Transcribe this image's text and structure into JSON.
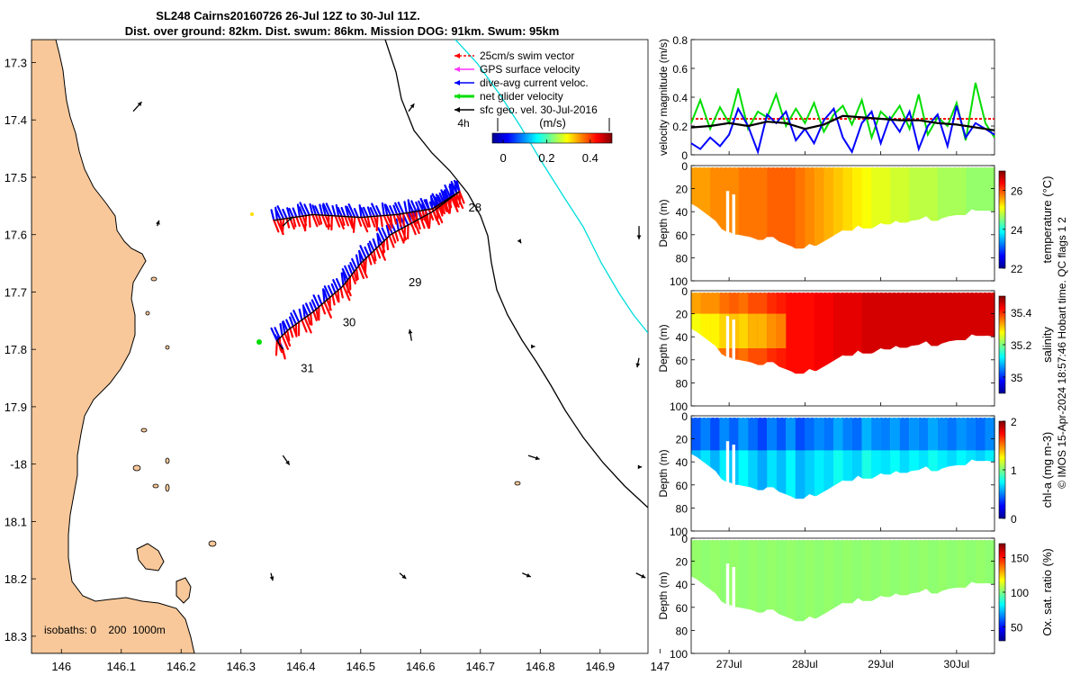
{
  "title": {
    "line1": "SL248 Cairns20160726 26-Jul 12Z to 30-Jul 11Z.",
    "line2": "Dist. over ground: 82km. Dist. swum: 86km. Mission DOG: 91km. Swum: 95km"
  },
  "footer": {
    "credit": "© IMOS 15-Apr-2024 18:57:46 Hobart time. QC flags 1  2"
  },
  "colors": {
    "land": "#f8c89a",
    "swim": "#ff0000",
    "gps": "#ff33ff",
    "dive_avg": "#0000ff",
    "net": "#00dd00",
    "track": "#000000",
    "sfc_geo": "#000000",
    "contour_shelf": "#000000",
    "contour_deep": "#00dddd"
  },
  "chart_data": [
    {
      "id": "map",
      "type": "map",
      "xlim": [
        145.95,
        146.98
      ],
      "ylim": [
        -18.33,
        -17.26
      ],
      "xticks": [
        146,
        146.1,
        146.2,
        146.3,
        146.4,
        146.5,
        146.6,
        146.7,
        146.8,
        146.9,
        147
      ],
      "xtick_labels": [
        "146",
        "146.1",
        "146.2",
        "146.3",
        "146.4",
        "146.5",
        "146.6",
        "146.7",
        "146.8",
        "146.9",
        "147"
      ],
      "yticks": [
        -17.3,
        -17.4,
        -17.5,
        -17.6,
        -17.7,
        -17.8,
        -17.9,
        -18,
        -18.1,
        -18.2,
        -18.3
      ],
      "ytick_labels": [
        "17.3",
        "17.4",
        "17.5",
        "17.6",
        "17.7",
        "17.8",
        "17.9",
        "-18",
        "18.1",
        "18.2",
        "18.3"
      ],
      "legend": [
        {
          "label": "25cm/s swim vector",
          "color_key": "swim"
        },
        {
          "label": "GPS surface velocity",
          "color_key": "gps"
        },
        {
          "label": "dive-avg current veloc.",
          "color_key": "dive_avg"
        },
        {
          "label": "net glider velocity",
          "color_key": "net"
        },
        {
          "label": "sfc geo. vel. 30-Jul-2016",
          "color_key": "sfc_geo"
        }
      ],
      "legend_placement": "top-right",
      "colorbar": {
        "label": "(m/s)",
        "ref_label": "4h",
        "ticks": [
          0,
          0.2,
          0.4
        ],
        "tick_labels": [
          "0",
          "0.2",
          "0.4"
        ],
        "range": [
          -0.05,
          0.5
        ],
        "colormap": "jet"
      },
      "isobaths_label": "isobaths: 0    200  1000m",
      "day_labels": [
        {
          "label": "28",
          "lon": 146.68,
          "lat": -17.56
        },
        {
          "label": "29",
          "lon": 146.58,
          "lat": -17.69
        },
        {
          "label": "30",
          "lon": 146.47,
          "lat": -17.76
        },
        {
          "label": "31",
          "lon": 146.4,
          "lat": -17.84
        }
      ],
      "track": [
        [
          146.665,
          -17.525
        ],
        [
          146.62,
          -17.56
        ],
        [
          146.55,
          -17.6
        ],
        [
          146.5,
          -17.65
        ],
        [
          146.47,
          -17.69
        ],
        [
          146.42,
          -17.735
        ],
        [
          146.38,
          -17.765
        ],
        [
          146.36,
          -17.785
        ],
        [
          146.37,
          -17.8
        ]
      ],
      "track_leg1": [
        [
          146.355,
          -17.575
        ],
        [
          146.42,
          -17.565
        ],
        [
          146.5,
          -17.57
        ],
        [
          146.56,
          -17.565
        ],
        [
          146.62,
          -17.555
        ],
        [
          146.665,
          -17.525
        ]
      ],
      "surface_vectors": [
        {
          "lon": 146.12,
          "lat": -17.385,
          "u": 0.09,
          "v": 0.1
        },
        {
          "lon": 146.58,
          "lat": -17.385,
          "u": 0.06,
          "v": 0.08
        },
        {
          "lon": 146.16,
          "lat": -17.585,
          "u": 0.02,
          "v": 0.06
        },
        {
          "lon": 146.37,
          "lat": -17.585,
          "u": 0.1,
          "v": 0.1
        },
        {
          "lon": 146.765,
          "lat": -17.61,
          "u": 0.02,
          "v": -0.03
        },
        {
          "lon": 146.965,
          "lat": -17.585,
          "u": 0.0,
          "v": -0.14
        },
        {
          "lon": 146.585,
          "lat": -17.785,
          "u": -0.02,
          "v": 0.12
        },
        {
          "lon": 146.785,
          "lat": -17.795,
          "u": 0.04,
          "v": 0.0
        },
        {
          "lon": 146.965,
          "lat": -17.815,
          "u": -0.02,
          "v": -0.1
        },
        {
          "lon": 146.37,
          "lat": -17.985,
          "u": 0.07,
          "v": -0.1
        },
        {
          "lon": 146.78,
          "lat": -17.985,
          "u": 0.12,
          "v": -0.04
        },
        {
          "lon": 146.965,
          "lat": -18.005,
          "u": 0.03,
          "v": 0.0
        },
        {
          "lon": 146.35,
          "lat": -18.19,
          "u": 0.02,
          "v": -0.08
        },
        {
          "lon": 146.565,
          "lat": -18.19,
          "u": 0.07,
          "v": -0.06
        },
        {
          "lon": 146.77,
          "lat": -18.19,
          "u": 0.09,
          "v": -0.04
        },
        {
          "lon": 146.96,
          "lat": -18.19,
          "u": 0.1,
          "v": -0.05
        }
      ]
    },
    {
      "id": "velocity",
      "type": "line",
      "ylabel": "velocity magnitude (m/s)",
      "xlim": [
        26.5,
        30.5
      ],
      "ylim": [
        0,
        0.8
      ],
      "yticks": [
        0,
        0.2,
        0.4,
        0.6,
        0.8
      ],
      "ytick_labels": [
        "0",
        "0.2",
        "0.4",
        "0.6",
        "0.8"
      ],
      "series": [
        {
          "name": "swim (25cm/s)",
          "color_key": "swim",
          "style": "dashed",
          "x": [
            26.5,
            30.5
          ],
          "y": [
            0.25,
            0.25
          ]
        },
        {
          "name": "net glider velocity",
          "color_key": "net",
          "x": [
            26.5,
            26.62,
            26.75,
            26.88,
            27.0,
            27.12,
            27.25,
            27.38,
            27.5,
            27.62,
            27.75,
            27.88,
            28.0,
            28.12,
            28.25,
            28.38,
            28.5,
            28.62,
            28.75,
            28.88,
            29.0,
            29.12,
            29.25,
            29.38,
            29.5,
            29.62,
            29.75,
            29.88,
            30.0,
            30.12,
            30.25,
            30.38,
            30.5
          ],
          "y": [
            0.22,
            0.38,
            0.18,
            0.33,
            0.22,
            0.46,
            0.18,
            0.3,
            0.26,
            0.42,
            0.2,
            0.32,
            0.22,
            0.36,
            0.16,
            0.28,
            0.34,
            0.21,
            0.38,
            0.12,
            0.3,
            0.24,
            0.34,
            0.18,
            0.42,
            0.14,
            0.26,
            0.2,
            0.36,
            0.1,
            0.5,
            0.22,
            0.12
          ]
        },
        {
          "name": "dive-avg current veloc.",
          "color_key": "dive_avg",
          "x": [
            26.5,
            26.62,
            26.75,
            26.88,
            27.0,
            27.12,
            27.25,
            27.38,
            27.5,
            27.62,
            27.75,
            27.88,
            28.0,
            28.12,
            28.25,
            28.38,
            28.5,
            28.62,
            28.75,
            28.88,
            29.0,
            29.12,
            29.25,
            29.38,
            29.5,
            29.62,
            29.75,
            29.88,
            30.0,
            30.12,
            30.25,
            30.38,
            30.5
          ],
          "y": [
            0.08,
            0.04,
            0.12,
            0.06,
            0.14,
            0.32,
            0.2,
            0.02,
            0.28,
            0.22,
            0.3,
            0.1,
            0.18,
            0.08,
            0.24,
            0.32,
            0.12,
            0.02,
            0.22,
            0.3,
            0.08,
            0.26,
            0.16,
            0.3,
            0.04,
            0.2,
            0.28,
            0.06,
            0.34,
            0.12,
            0.22,
            0.18,
            0.14
          ]
        },
        {
          "name": "dist. over ground",
          "color_key": "track",
          "x": [
            26.5,
            26.75,
            27.0,
            27.25,
            27.5,
            27.75,
            28.0,
            28.25,
            28.5,
            28.75,
            29.0,
            29.25,
            29.5,
            29.75,
            30.0,
            30.25,
            30.5
          ],
          "y": [
            0.19,
            0.2,
            0.22,
            0.2,
            0.23,
            0.22,
            0.18,
            0.21,
            0.27,
            0.26,
            0.25,
            0.24,
            0.24,
            0.22,
            0.21,
            0.19,
            0.17
          ]
        }
      ]
    },
    {
      "id": "temperature",
      "type": "heatmap",
      "ylabel": "Depth (m)",
      "colorbar_label": "temperature (°C)",
      "yticks": [
        0,
        20,
        40,
        60,
        80,
        100
      ],
      "ytick_labels": [
        "0",
        "20",
        "40",
        "60",
        "80",
        "100"
      ],
      "clim": [
        22,
        27
      ],
      "cticks": [
        22,
        24,
        26
      ],
      "ctick_labels": [
        "22",
        "24",
        "26"
      ],
      "colormap": "jet",
      "columns_value": [
        25.6,
        25.6,
        25.7,
        25.7,
        25.7,
        25.8,
        25.8,
        25.8,
        25.9,
        25.9,
        25.9,
        25.8,
        25.7,
        25.6,
        25.5,
        25.4,
        25.3,
        25.2,
        25.1,
        25.0,
        25.0,
        24.9,
        24.9,
        24.8,
        24.8,
        24.8,
        24.7,
        24.7,
        24.7,
        24.6,
        24.6,
        24.6
      ]
    },
    {
      "id": "salinity",
      "type": "heatmap",
      "ylabel": "Depth (m)",
      "colorbar_label": "salinity",
      "yticks": [
        0,
        20,
        40,
        60,
        80,
        100
      ],
      "ytick_labels": [
        "0",
        "20",
        "40",
        "60",
        "80",
        "100"
      ],
      "clim": [
        34.9,
        35.5
      ],
      "cticks": [
        35,
        35.2,
        35.4
      ],
      "ctick_labels": [
        "35",
        "35.2",
        "35.4"
      ],
      "colormap": "jet",
      "columns_value": [
        35.33,
        35.34,
        35.34,
        35.36,
        35.37,
        35.36,
        35.38,
        35.38,
        35.4,
        35.41,
        35.42,
        35.42,
        35.42,
        35.43,
        35.43,
        35.44,
        35.44,
        35.44,
        35.45,
        35.45,
        35.45,
        35.45,
        35.45,
        35.45,
        35.45,
        35.45,
        35.45,
        35.45,
        35.45,
        35.45,
        35.45,
        35.45
      ]
    },
    {
      "id": "chla",
      "type": "heatmap",
      "ylabel": "Depth (m)",
      "colorbar_label": "chl-a (mg m-3)",
      "yticks": [
        0,
        20,
        40,
        60,
        80,
        100
      ],
      "ytick_labels": [
        "0",
        "20",
        "40",
        "60",
        "80",
        "100"
      ],
      "clim": [
        0,
        2
      ],
      "cticks": [
        0,
        1,
        2
      ],
      "ctick_labels": [
        "0",
        "1",
        "2"
      ],
      "colormap": "jet",
      "columns_value": [
        0.62,
        0.7,
        0.6,
        0.72,
        0.64,
        0.75,
        0.66,
        0.58,
        0.7,
        0.62,
        0.74,
        0.6,
        0.66,
        0.72,
        0.68,
        0.78,
        0.7,
        0.66,
        0.8,
        0.72,
        0.7,
        0.76,
        0.68,
        0.74,
        0.7,
        0.78,
        0.72,
        0.68,
        0.74,
        0.7,
        0.66,
        0.72
      ],
      "surface_value": 0.45
    },
    {
      "id": "oxygen",
      "type": "heatmap",
      "ylabel": "Depth (m)",
      "colorbar_label": "Ox. sat. ratio (%)",
      "yticks": [
        0,
        20,
        40,
        60,
        80,
        100
      ],
      "ytick_labels": [
        "0",
        "20",
        "40",
        "60",
        "80",
        "100"
      ],
      "clim": [
        30,
        170
      ],
      "cticks": [
        50,
        100,
        150
      ],
      "ctick_labels": [
        "50",
        "100",
        "150"
      ],
      "colormap": "jet",
      "columns_value": [
        103,
        102,
        103,
        102,
        103,
        102,
        103,
        102,
        103,
        102,
        103,
        102,
        103,
        102,
        103,
        102,
        103,
        102,
        103,
        102,
        103,
        102,
        103,
        102,
        103,
        102,
        103,
        102,
        103,
        102,
        103,
        102
      ],
      "xticks": [
        27,
        28,
        29,
        30
      ],
      "xtick_labels": [
        "27Jul",
        "28Jul",
        "29Jul",
        "30Jul"
      ]
    }
  ],
  "section_profile": {
    "xlim": [
      26.5,
      30.5
    ],
    "bottom_depth": {
      "x": [
        26.5,
        26.58,
        26.66,
        26.74,
        26.82,
        26.9,
        26.98,
        27.02,
        27.06,
        27.12,
        27.2,
        27.28,
        27.36,
        27.42,
        27.5,
        27.58,
        27.66,
        27.74,
        27.82,
        27.9,
        27.98,
        28.06,
        28.14,
        28.22,
        28.3,
        28.4,
        28.5,
        28.6,
        28.7,
        28.8,
        28.9,
        29.0,
        29.1,
        29.2,
        29.3,
        29.4,
        29.5,
        29.6,
        29.7,
        29.8,
        29.9,
        30.0,
        30.1,
        30.2,
        30.3,
        30.4,
        30.5
      ],
      "d": [
        33,
        36,
        40,
        44,
        48,
        55,
        58,
        58,
        60,
        60,
        61,
        62,
        64,
        66,
        62,
        62,
        66,
        68,
        70,
        73,
        72,
        68,
        70,
        67,
        64,
        60,
        56,
        58,
        52,
        56,
        54,
        50,
        52,
        48,
        51,
        48,
        47,
        44,
        50,
        46,
        44,
        43,
        44,
        38,
        40,
        39,
        40
      ]
    },
    "intrusions": [
      {
        "x0": 26.96,
        "x1": 27.0,
        "depth": 22
      },
      {
        "x0": 27.01,
        "x1": 27.04,
        "depth": 60
      },
      {
        "x0": 27.04,
        "x1": 27.08,
        "depth": 25
      }
    ]
  }
}
